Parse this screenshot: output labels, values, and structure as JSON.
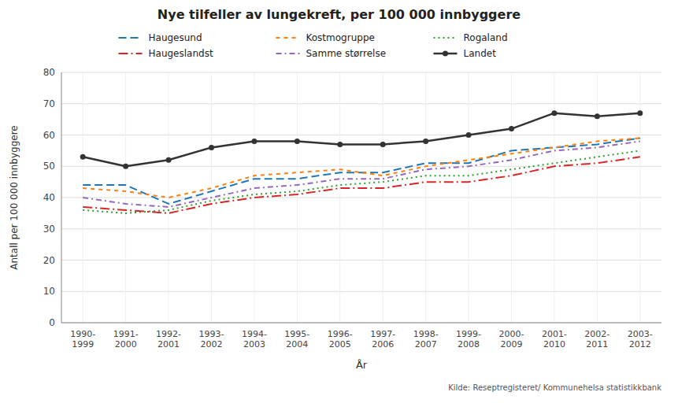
{
  "chart_data": {
    "type": "line",
    "title": "Nye tilfeller av lungekreft, per 100 000 innbyggere",
    "y_label": "Antall per 100 000 innbyggere",
    "x_label": "År",
    "annotations": [
      "Kilde: Reseptregisteret/ Kommunehelsa statistikkbank"
    ],
    "categories": [
      "1990-\n1999",
      "1991-\n2000",
      "1992-\n2001",
      "1993-\n2002",
      "1994-\n2003",
      "1995-\n2004",
      "1996-\n2005",
      "1997-\n2006",
      "1998-\n2007",
      "1999-\n2008",
      "2000-\n2009",
      "2001-\n2010",
      "2002-\n2011",
      "2003-\n2012"
    ],
    "ylim": [
      0,
      80
    ],
    "yticks": [
      0,
      10,
      20,
      30,
      40,
      50,
      60,
      70,
      80
    ],
    "grid": true,
    "legend": "top",
    "series": [
      {
        "name": "Haugesund",
        "line_style": "long-dash",
        "values": [
          44,
          44,
          38,
          42,
          46,
          46,
          48,
          48,
          51,
          51,
          55,
          56,
          57,
          59
        ]
      },
      {
        "name": "Kostmogruppe",
        "line_style": "dash",
        "values": [
          43,
          42,
          40,
          43,
          47,
          48,
          49,
          47,
          50,
          52,
          54,
          56,
          58,
          59
        ]
      },
      {
        "name": "Rogaland",
        "line_style": "dot",
        "values": [
          36,
          35,
          36,
          39,
          41,
          42,
          44,
          45,
          47,
          47,
          49,
          51,
          53,
          55
        ]
      },
      {
        "name": "Haugeslandst",
        "line_style": "long-dash-dot",
        "values": [
          37,
          36,
          35,
          38,
          40,
          41,
          43,
          43,
          45,
          45,
          47,
          50,
          51,
          53
        ]
      },
      {
        "name": "Samme størrelse",
        "line_style": "dash-dot",
        "values": [
          40,
          38,
          37,
          40,
          43,
          44,
          46,
          46,
          49,
          50,
          52,
          55,
          56,
          58
        ]
      },
      {
        "name": "Landet",
        "line_style": "solid",
        "marker": "circle",
        "values": [
          53,
          50,
          52,
          56,
          58,
          58,
          57,
          57,
          58,
          60,
          62,
          67,
          66,
          67
        ]
      }
    ]
  }
}
